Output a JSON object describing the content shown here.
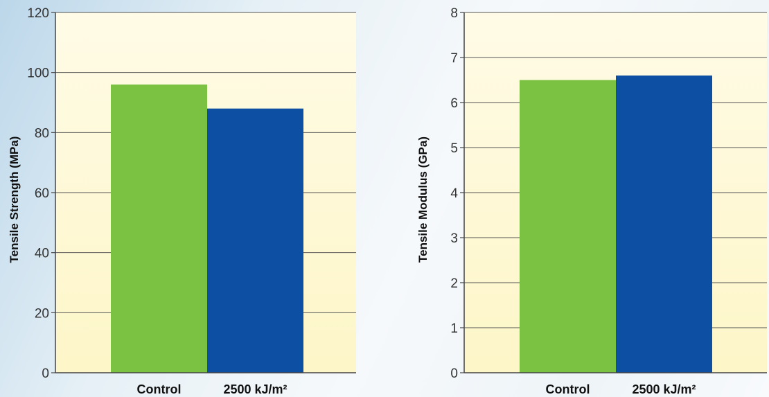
{
  "colors": {
    "control_bar": "#7cc242",
    "treated_bar": "#0d4fa3",
    "plot_bg_top": "#fffbe6",
    "plot_bg_bottom": "#fdf6c8",
    "gridline": "#555555",
    "axis": "#444444"
  },
  "chart_data": [
    {
      "type": "bar",
      "categories": [
        "Control",
        "2500 kJ/m²"
      ],
      "values": [
        96,
        88
      ],
      "ylabel": "Tensile Strength (MPa)",
      "xlabel": "",
      "title": "",
      "ylim": [
        0,
        120
      ],
      "yticks": [
        0,
        20,
        40,
        60,
        80,
        100,
        120
      ],
      "grid": true
    },
    {
      "type": "bar",
      "categories": [
        "Control",
        "2500 kJ/m²"
      ],
      "values": [
        6.5,
        6.6
      ],
      "ylabel": "Tensile Modulus (GPa)",
      "xlabel": "",
      "title": "",
      "ylim": [
        0,
        8
      ],
      "yticks": [
        0,
        1,
        2,
        3,
        4,
        5,
        6,
        7,
        8
      ],
      "grid": true
    }
  ]
}
